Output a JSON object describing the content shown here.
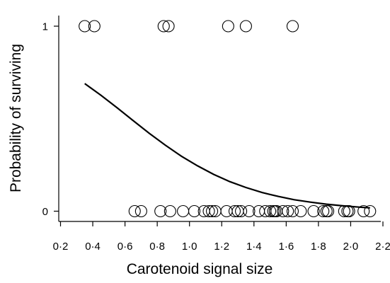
{
  "chart_data": {
    "type": "scatter",
    "title": "",
    "xlabel": "Carotenoid signal size",
    "ylabel": "Probability of surviving",
    "xlim": [
      0.2,
      2.2
    ],
    "ylim": [
      0,
      1
    ],
    "x_ticks": [
      0.2,
      0.4,
      0.6,
      0.8,
      1.0,
      1.2,
      1.4,
      1.6,
      1.8,
      2.0,
      2.2
    ],
    "x_tick_labels": [
      "0·2",
      "0·4",
      "0·6",
      "0·8",
      "1·0",
      "1·2",
      "1·4",
      "1·6",
      "1·8",
      "2·0",
      "2·2"
    ],
    "y_ticks": [
      0,
      1
    ],
    "y_tick_labels": [
      "0",
      "1"
    ],
    "grid": false,
    "series": [
      {
        "type": "scatter",
        "marker": "open-circle",
        "points": [
          [
            0.35,
            1
          ],
          [
            0.41,
            1
          ],
          [
            0.84,
            1
          ],
          [
            0.87,
            1
          ],
          [
            1.24,
            1
          ],
          [
            1.35,
            1
          ],
          [
            1.64,
            1
          ],
          [
            0.66,
            0
          ],
          [
            0.7,
            0
          ],
          [
            0.82,
            0
          ],
          [
            0.88,
            0
          ],
          [
            0.96,
            0
          ],
          [
            1.03,
            0
          ],
          [
            1.09,
            0
          ],
          [
            1.12,
            0
          ],
          [
            1.14,
            0
          ],
          [
            1.16,
            0
          ],
          [
            1.23,
            0
          ],
          [
            1.28,
            0
          ],
          [
            1.3,
            0
          ],
          [
            1.32,
            0
          ],
          [
            1.37,
            0
          ],
          [
            1.43,
            0
          ],
          [
            1.47,
            0
          ],
          [
            1.5,
            0
          ],
          [
            1.52,
            0
          ],
          [
            1.53,
            0
          ],
          [
            1.54,
            0
          ],
          [
            1.58,
            0
          ],
          [
            1.61,
            0
          ],
          [
            1.64,
            0
          ],
          [
            1.69,
            0
          ],
          [
            1.77,
            0
          ],
          [
            1.83,
            0
          ],
          [
            1.85,
            0
          ],
          [
            1.86,
            0
          ],
          [
            1.96,
            0
          ],
          [
            1.98,
            0
          ],
          [
            1.99,
            0
          ],
          [
            2.08,
            0
          ],
          [
            2.12,
            0
          ]
        ]
      },
      {
        "type": "line",
        "x": [
          0.35,
          0.45,
          0.55,
          0.65,
          0.75,
          0.85,
          0.95,
          1.05,
          1.15,
          1.25,
          1.35,
          1.45,
          1.55,
          1.65,
          1.75,
          1.85,
          1.95,
          2.05,
          2.12
        ],
        "values": [
          0.69,
          0.627,
          0.56,
          0.49,
          0.421,
          0.357,
          0.297,
          0.245,
          0.199,
          0.16,
          0.128,
          0.101,
          0.08,
          0.062,
          0.049,
          0.038,
          0.029,
          0.022,
          0.018
        ]
      }
    ]
  }
}
